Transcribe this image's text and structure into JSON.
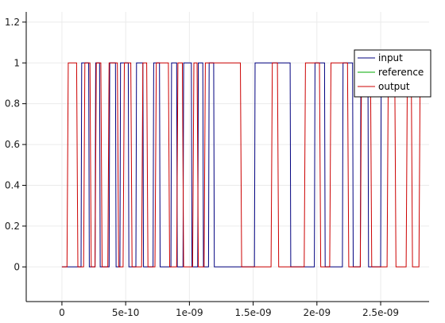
{
  "chart_data": {
    "type": "line",
    "title": "",
    "xlabel": "",
    "ylabel": "",
    "xlim": [
      -2.8e-10,
      2.88e-09
    ],
    "ylim": [
      -0.17,
      1.25
    ],
    "grid": true,
    "legend_position": "top-right",
    "x_ticks": [
      {
        "value": 0,
        "label": "0"
      },
      {
        "value": 5e-10,
        "label": "5e-10"
      },
      {
        "value": 1e-09,
        "label": "1e-09"
      },
      {
        "value": 1.5e-09,
        "label": "1.5e-09"
      },
      {
        "value": 2e-09,
        "label": "2e-09"
      },
      {
        "value": 2.5e-09,
        "label": "2.5e-09"
      }
    ],
    "y_ticks": [
      {
        "value": 0,
        "label": "0"
      },
      {
        "value": 0.2,
        "label": "0.2"
      },
      {
        "value": 0.4,
        "label": "0.4"
      },
      {
        "value": 0.6,
        "label": "0.6"
      },
      {
        "value": 0.8,
        "label": "0.8"
      },
      {
        "value": 1,
        "label": "1"
      },
      {
        "value": 1.2,
        "label": "1.2"
      }
    ],
    "series": [
      {
        "name": "input",
        "color": "#00007f",
        "x": [
          0,
          1.5e-10,
          1.55e-10,
          2.1e-10,
          2.15e-10,
          2.6e-10,
          2.65e-10,
          2.95e-10,
          3e-10,
          3.7e-10,
          3.75e-10,
          4.2e-10,
          4.25e-10,
          4.55e-10,
          4.6e-10,
          5.2e-10,
          5.25e-10,
          5.8e-10,
          5.85e-10,
          6.35e-10,
          6.4e-10,
          7.15e-10,
          7.2e-10,
          7.65e-10,
          7.7e-10,
          8.55e-10,
          8.6e-10,
          9e-10,
          9.05e-10,
          9.5e-10,
          9.55e-10,
          1.015e-09,
          1.02e-09,
          1.065e-09,
          1.07e-09,
          1.105e-09,
          1.11e-09,
          1.15e-09,
          1.155e-09,
          1.19e-09,
          1.195e-09,
          1.51e-09,
          1.515e-09,
          1.79e-09,
          1.795e-09,
          1.98e-09,
          1.985e-09,
          2.06e-09,
          2.065e-09,
          2.2e-09,
          2.205e-09,
          2.28e-09,
          2.285e-09,
          2.34e-09,
          2.345e-09,
          2.4e-09,
          2.405e-09,
          2.5e-09,
          2.505e-09,
          2.84e-09
        ],
        "y": [
          0,
          0,
          1,
          1,
          0,
          0,
          1,
          1,
          0,
          0,
          1,
          1,
          0,
          0,
          1,
          1,
          0,
          0,
          1,
          1,
          0,
          0,
          1,
          1,
          0,
          0,
          1,
          1,
          0,
          0,
          1,
          1,
          0,
          0,
          1,
          1,
          0,
          0,
          1,
          1,
          0,
          0,
          1,
          1,
          0,
          0,
          1,
          1,
          0,
          0,
          1,
          1,
          0,
          0,
          1,
          1,
          0,
          0,
          1,
          1
        ]
      },
      {
        "name": "reference",
        "color": "#00aa00",
        "x": [],
        "y": []
      },
      {
        "name": "output",
        "color": "#cc0000",
        "x": [
          0,
          4e-11,
          5e-11,
          1.15e-10,
          1.25e-10,
          1.7e-10,
          1.8e-10,
          2.2e-10,
          2.3e-10,
          2.6e-10,
          2.7e-10,
          3.05e-10,
          3.15e-10,
          3.6e-10,
          3.7e-10,
          4.35e-10,
          4.45e-10,
          4.8e-10,
          4.9e-10,
          5.4e-10,
          5.5e-10,
          6.25e-10,
          6.35e-10,
          6.65e-10,
          6.75e-10,
          7.3e-10,
          7.4e-10,
          8.35e-10,
          8.45e-10,
          9e-10,
          9.1e-10,
          9.45e-10,
          9.55e-10,
          1.025e-09,
          1.035e-09,
          1.06e-09,
          1.07e-09,
          1.115e-09,
          1.125e-09,
          1.4e-09,
          1.41e-09,
          1.64e-09,
          1.65e-09,
          1.69e-09,
          1.7e-09,
          1.9e-09,
          1.91e-09,
          2.02e-09,
          2.03e-09,
          2.1e-09,
          2.11e-09,
          2.24e-09,
          2.25e-09,
          2.34e-09,
          2.35e-09,
          2.42e-09,
          2.43e-09,
          2.55e-09,
          2.56e-09,
          2.61e-09,
          2.62e-09,
          2.7e-09,
          2.71e-09,
          2.74e-09,
          2.75e-09,
          2.8e-09,
          2.81e-09,
          2.86e-09
        ],
        "y": [
          0,
          0,
          1,
          1,
          0,
          0,
          1,
          1,
          0,
          0,
          1,
          1,
          0,
          0,
          1,
          1,
          0,
          0,
          1,
          1,
          0,
          0,
          1,
          1,
          0,
          0,
          1,
          1,
          0,
          0,
          1,
          1,
          0,
          0,
          1,
          1,
          0,
          0,
          1,
          1,
          0,
          0,
          1,
          1,
          0,
          0,
          1,
          1,
          0,
          0,
          1,
          1,
          0,
          0,
          1,
          1,
          0,
          0,
          1,
          1,
          0,
          0,
          1,
          1,
          0,
          0,
          1,
          1
        ]
      }
    ]
  },
  "colors": {
    "background": "#ffffff",
    "axis": "#000000",
    "grid": "#ebebeb"
  }
}
